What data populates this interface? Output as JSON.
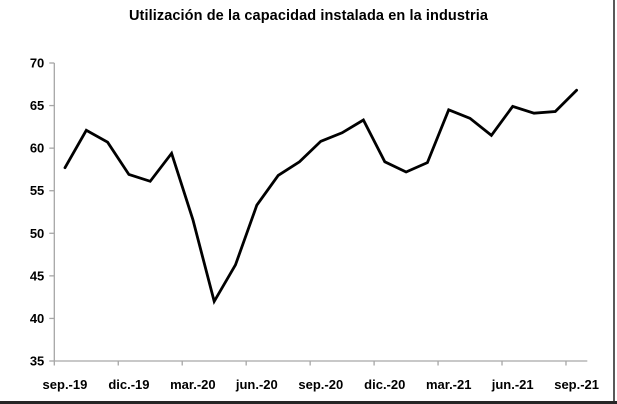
{
  "title": "Utilización de la capacidad instalada en la industria",
  "chart_data": {
    "type": "line",
    "x": [
      "sep.-19",
      "oct.-19",
      "nov.-19",
      "dic.-19",
      "ene.-20",
      "feb.-20",
      "mar.-20",
      "abr.-20",
      "may.-20",
      "jun.-20",
      "jul.-20",
      "ago.-20",
      "sep.-20",
      "oct.-20",
      "nov.-20",
      "dic.-20",
      "ene.-21",
      "feb.-21",
      "mar.-21",
      "abr.-21",
      "may.-21",
      "jun.-21",
      "jul.-21",
      "ago.-21",
      "sep.-21"
    ],
    "values": [
      57.7,
      62.1,
      60.7,
      56.9,
      56.1,
      59.4,
      51.6,
      42.0,
      46.3,
      53.3,
      56.8,
      58.4,
      60.8,
      61.8,
      63.3,
      58.4,
      57.2,
      58.3,
      64.5,
      63.5,
      61.5,
      64.9,
      64.1,
      64.3,
      66.8
    ],
    "title": "Utilización de la capacidad instalada en la industria",
    "xlabel": "",
    "ylabel": "",
    "ylim": [
      35,
      70
    ],
    "y_ticks": [
      35,
      40,
      45,
      50,
      55,
      60,
      65,
      70
    ],
    "x_tick_labels": [
      "sep.-19",
      "dic.-19",
      "mar.-20",
      "jun.-20",
      "sep.-20",
      "dic.-20",
      "mar.-21",
      "jun.-21",
      "sep.-21"
    ],
    "x_tick_interval": 3,
    "grid": false,
    "legend": "none",
    "colors": {
      "line": "#000000",
      "axis": "#a6a6a6",
      "text": "#000000",
      "background": "#ffffff",
      "frame_right": "#595959",
      "frame_bottom": "#262626"
    }
  }
}
